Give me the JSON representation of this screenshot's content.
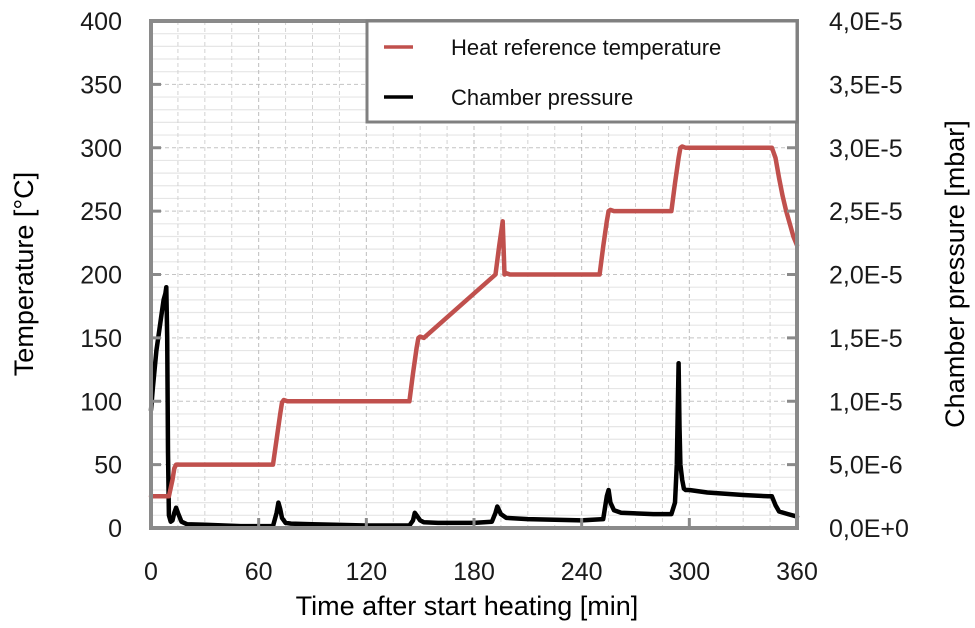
{
  "chart_data": {
    "type": "line",
    "title": "",
    "xlabel": "Time after start heating [min]",
    "ylabel": "Temperature [°C]",
    "y2label": "Chamber pressure [mbar]",
    "xlim": [
      0,
      360
    ],
    "ylim": [
      0,
      400
    ],
    "y2lim": [
      0,
      4e-05
    ],
    "x_ticks": [
      0,
      60,
      120,
      180,
      240,
      300,
      360
    ],
    "x_tick_labels": [
      "0",
      "60",
      "120",
      "180",
      "240",
      "300",
      "360"
    ],
    "y_ticks": [
      0,
      50,
      100,
      150,
      200,
      250,
      300,
      350,
      400
    ],
    "y_tick_labels": [
      "0",
      "50",
      "100",
      "150",
      "200",
      "250",
      "300",
      "350",
      "400"
    ],
    "y2_ticks": [
      0,
      5e-06,
      1e-05,
      1.5e-05,
      2e-05,
      2.5e-05,
      3e-05,
      3.5e-05,
      4e-05
    ],
    "y2_tick_labels": [
      "0,0E+0",
      "5,0E-6",
      "1,0E-5",
      "1,5E-5",
      "2,0E-5",
      "2,5E-5",
      "3,0E-5",
      "3,5E-5",
      "4,0E-5"
    ],
    "grid": true,
    "legend_position": "top-right",
    "series": [
      {
        "name": "Heat reference temperature",
        "axis": "left",
        "color": "#c0504d",
        "x": [
          0,
          10,
          12,
          13,
          14,
          16,
          68,
          70,
          72,
          73,
          74,
          76,
          144,
          146,
          148,
          149,
          150,
          152,
          192,
          194,
          196,
          197,
          198,
          200,
          250,
          252,
          254,
          255,
          256,
          258,
          290,
          292,
          294,
          295,
          296,
          298,
          346,
          348,
          350,
          352,
          354,
          356,
          358,
          360
        ],
        "y": [
          25,
          25,
          38,
          47,
          50,
          50,
          50,
          70,
          90,
          99,
          101,
          100,
          100,
          122,
          142,
          150,
          151,
          150,
          200,
          222,
          242,
          200,
          201,
          200,
          200,
          222,
          242,
          250,
          251,
          250,
          250,
          272,
          292,
          300,
          301,
          300,
          300,
          292,
          276,
          262,
          250,
          240,
          230,
          223
        ]
      },
      {
        "name": "Chamber pressure",
        "axis": "right",
        "color": "#000000",
        "x": [
          0,
          1,
          2,
          3,
          4,
          5,
          6,
          7,
          8,
          8.5,
          9,
          9.5,
          10,
          11,
          12,
          13,
          14,
          15,
          17,
          20,
          30,
          50,
          68,
          70,
          71,
          72,
          73,
          75,
          78,
          90,
          120,
          144,
          146,
          147,
          148,
          150,
          152,
          160,
          180,
          190,
          192,
          193,
          195,
          198,
          210,
          240,
          252,
          254,
          255,
          256,
          258,
          262,
          280,
          290,
          292,
          293,
          294,
          294.5,
          295,
          296,
          297,
          298,
          300,
          310,
          330,
          344,
          346,
          348,
          350,
          355,
          360
        ],
        "y": [
          9.3e-06,
          1.1e-05,
          1.25e-05,
          1.4e-05,
          1.5e-05,
          1.6e-05,
          1.7e-05,
          1.8e-05,
          1.85e-05,
          1.9e-05,
          1.5e-05,
          6e-06,
          1e-06,
          5e-07,
          6e-07,
          1.2e-06,
          1.6e-06,
          1.2e-06,
          5e-07,
          3e-07,
          2.5e-07,
          1.5e-07,
          1.5e-07,
          1.2e-06,
          2e-06,
          1.5e-06,
          8e-07,
          4e-07,
          3.5e-07,
          3e-07,
          2e-07,
          2e-07,
          6e-07,
          1.2e-06,
          1e-06,
          6e-07,
          4.5e-07,
          4e-07,
          4e-07,
          5e-07,
          1.2e-06,
          1.7e-06,
          1.1e-06,
          8e-07,
          7e-07,
          6e-07,
          7e-07,
          2.5e-06,
          3e-06,
          2e-06,
          1.4e-06,
          1.2e-06,
          1.1e-06,
          1.1e-06,
          2e-06,
          5e-06,
          1.3e-05,
          8e-06,
          5e-06,
          3.8e-06,
          3.1e-06,
          3e-06,
          3e-06,
          2.8e-06,
          2.6e-06,
          2.5e-06,
          2.5e-06,
          1.8e-06,
          1.3e-06,
          1.1e-06,
          9e-07
        ]
      }
    ]
  },
  "legend": {
    "items": [
      {
        "label": "Heat reference temperature",
        "color": "#c0504d"
      },
      {
        "label": "Chamber pressure",
        "color": "#000000"
      }
    ]
  }
}
